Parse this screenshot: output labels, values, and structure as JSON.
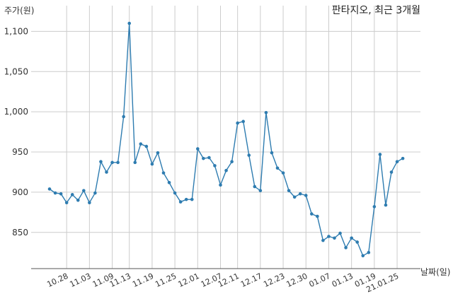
{
  "chart_data": {
    "type": "line",
    "title": "판타지오, 최근 3개월",
    "xlabel": "날짜(일)",
    "ylabel": "주가(원)",
    "ylim": [
      805,
      1132
    ],
    "yticks": [
      850,
      900,
      950,
      1000,
      1050,
      1100
    ],
    "ytick_labels": [
      "850",
      "900",
      "950",
      "1,000",
      "1,050",
      "1,100"
    ],
    "xtick_labels": [
      "10.28",
      "11.03",
      "11.09",
      "11.13",
      "11.19",
      "11.25",
      "12.01",
      "12.07",
      "12.11",
      "12.17",
      "12.23",
      "12.30",
      "01.07",
      "01.13",
      "01.19",
      "21.01.25"
    ],
    "xtick_index": [
      3,
      7,
      11,
      14,
      18,
      22,
      26,
      30,
      33,
      37,
      41,
      45,
      49,
      53,
      57,
      61
    ],
    "grid": true,
    "line_color": "#2e7cb0",
    "series": [
      {
        "values": [
          904,
          899,
          898,
          887,
          897,
          890,
          902,
          887,
          899,
          938,
          925,
          937,
          937,
          994,
          1110,
          937,
          960,
          957,
          935,
          949,
          924,
          912,
          899,
          888,
          891,
          891,
          954,
          942,
          943,
          933,
          909,
          927,
          938,
          986,
          988,
          946,
          907,
          902,
          999,
          949,
          930,
          924,
          902,
          894,
          898,
          896,
          873,
          870,
          840,
          845,
          843,
          849,
          831,
          843,
          838,
          821,
          825,
          882,
          947,
          884,
          925,
          938,
          942
        ]
      }
    ]
  }
}
